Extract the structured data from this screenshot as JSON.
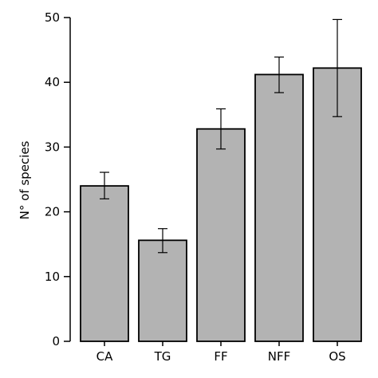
{
  "chart_data": {
    "type": "bar",
    "title": "",
    "xlabel": "",
    "ylabel": "N° of species",
    "ylim": [
      0,
      50
    ],
    "yticks": [
      0,
      10,
      20,
      30,
      40,
      50
    ],
    "grid": false,
    "categories": [
      "CA",
      "TG",
      "FF",
      "NFF",
      "OS"
    ],
    "values": [
      24.0,
      15.6,
      32.8,
      41.2,
      42.2
    ],
    "error_low": [
      22.0,
      13.7,
      29.7,
      38.4,
      34.7
    ],
    "error_high": [
      26.1,
      17.4,
      35.9,
      43.9,
      49.7
    ],
    "bar_color": "#b3b3b3",
    "edge_color": "#000000"
  }
}
